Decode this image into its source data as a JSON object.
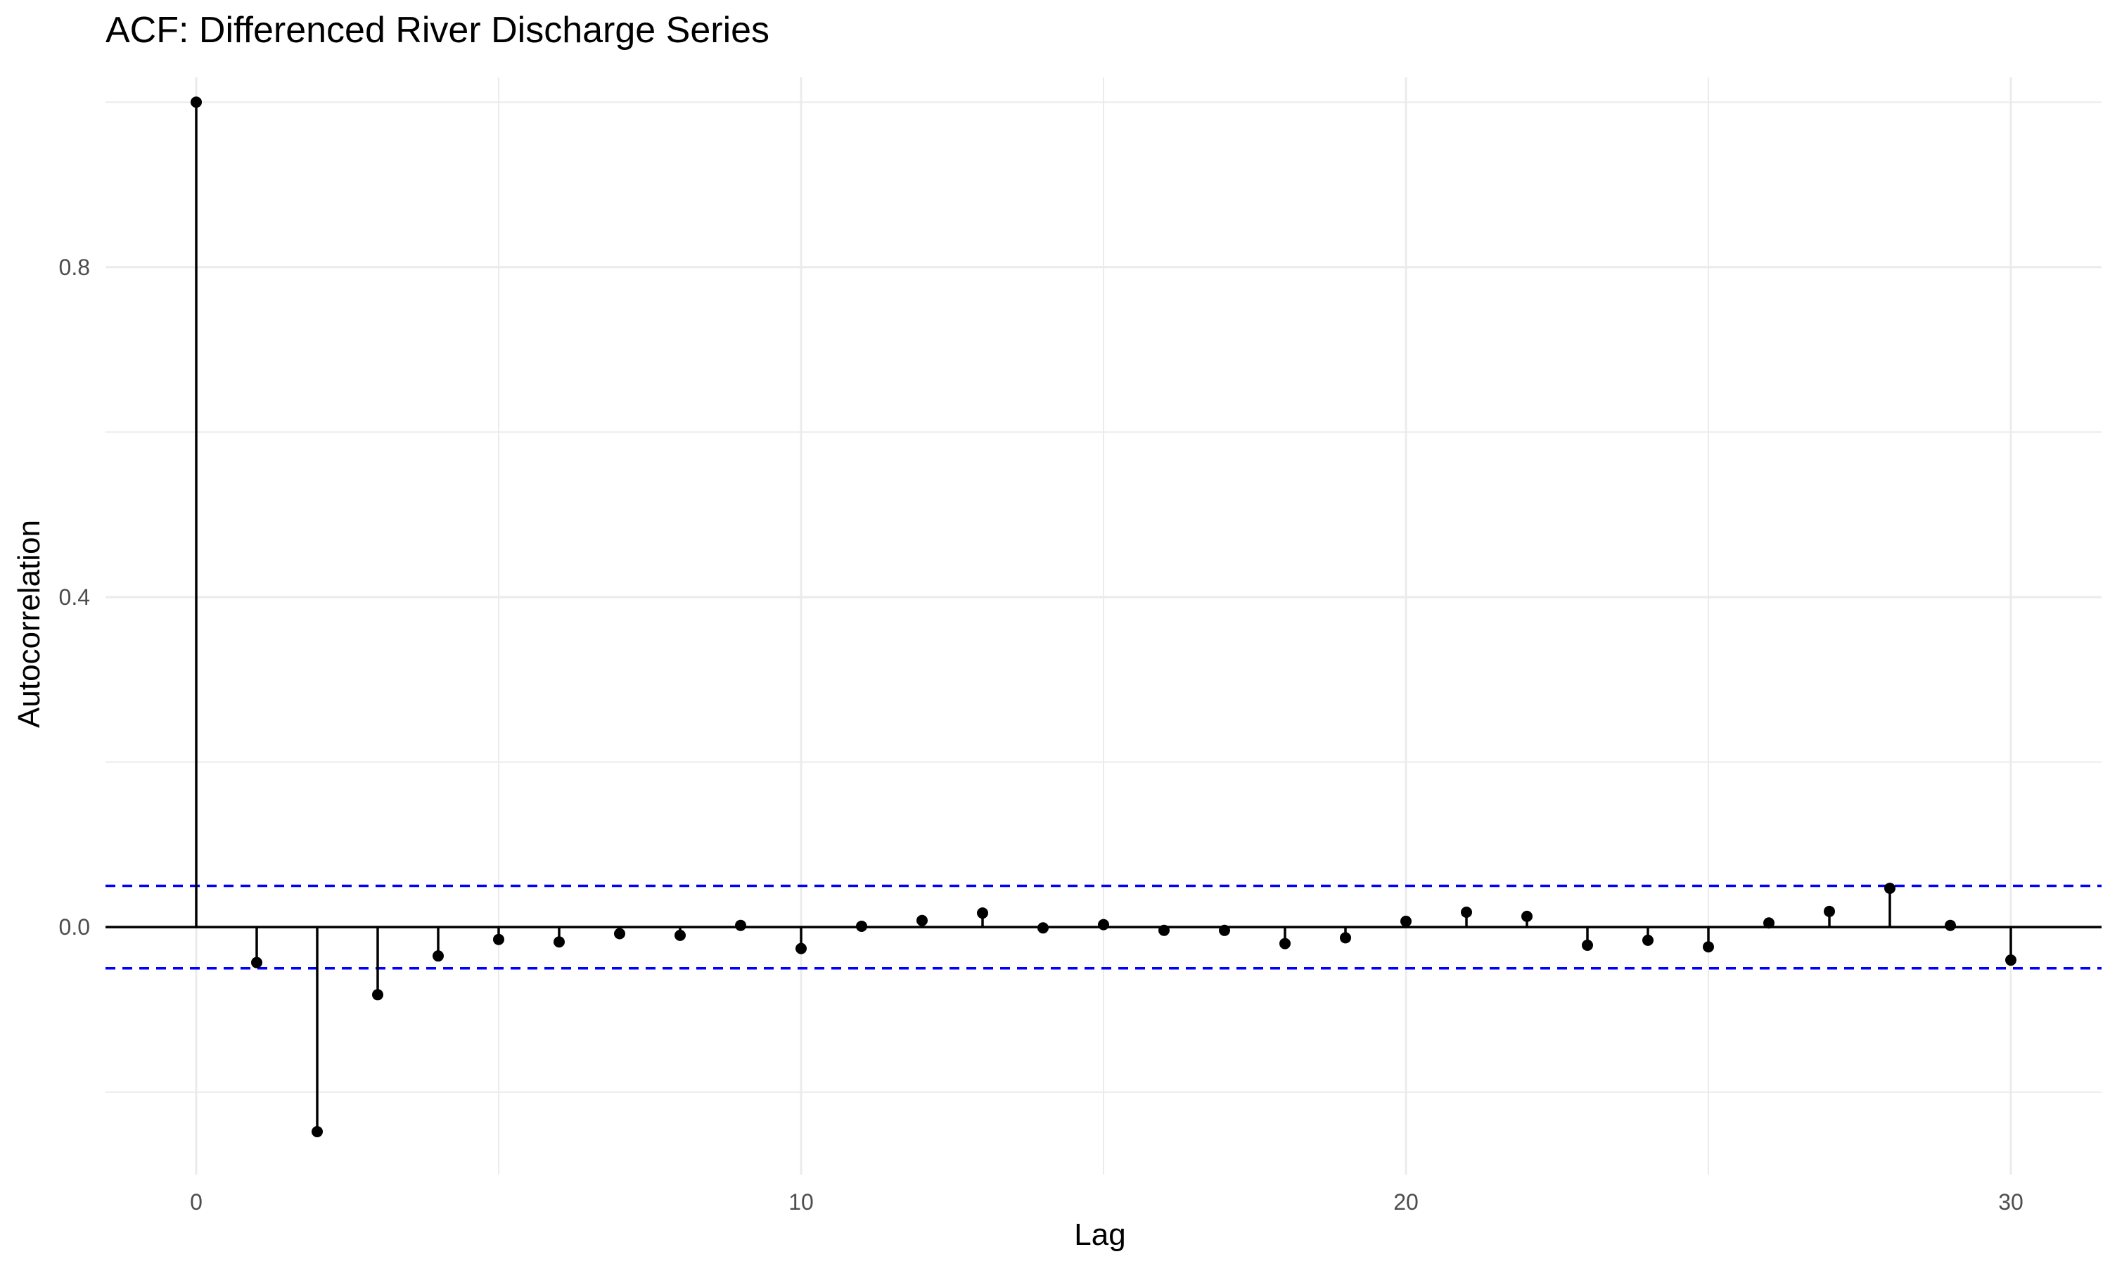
{
  "chart_data": {
    "type": "stem",
    "title": "ACF: Differenced River Discharge Series",
    "xlabel": "Lag",
    "ylabel": "Autocorrelation",
    "xlim": [
      -1.5,
      31.5
    ],
    "ylim": [
      -0.3,
      1.03
    ],
    "x_ticks": [
      0,
      10,
      20,
      30
    ],
    "x_tick_labels": [
      "0",
      "10",
      "20",
      "30"
    ],
    "y_ticks": [
      0.0,
      0.4,
      0.8
    ],
    "y_tick_labels": [
      "0.0",
      "0.4",
      "0.8"
    ],
    "x_minor_ticks": [
      5,
      15,
      25
    ],
    "y_minor_ticks": [
      -0.2,
      0.2,
      0.6,
      1.0
    ],
    "grid": true,
    "confidence_band": 0.05,
    "colors": {
      "stem": "#000000",
      "point": "#000000",
      "confidence": "#0000ff",
      "grid": "#ebebeb",
      "zero_line": "#000000"
    },
    "lags": [
      0,
      1,
      2,
      3,
      4,
      5,
      6,
      7,
      8,
      9,
      10,
      11,
      12,
      13,
      14,
      15,
      16,
      17,
      18,
      19,
      20,
      21,
      22,
      23,
      24,
      25,
      26,
      27,
      28,
      29,
      30
    ],
    "acf": [
      1.0,
      -0.043,
      -0.248,
      -0.082,
      -0.035,
      -0.015,
      -0.018,
      -0.008,
      -0.01,
      0.002,
      -0.026,
      0.001,
      0.008,
      0.017,
      -0.001,
      0.003,
      -0.004,
      -0.004,
      -0.02,
      -0.013,
      0.007,
      0.018,
      0.013,
      -0.022,
      -0.016,
      -0.024,
      0.005,
      0.019,
      0.047,
      0.002,
      -0.04
    ]
  }
}
